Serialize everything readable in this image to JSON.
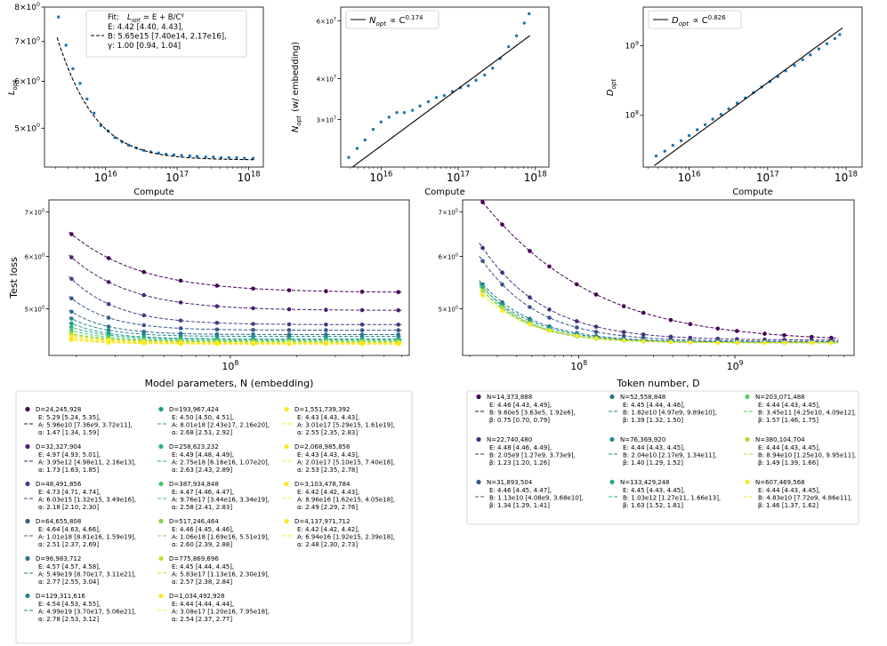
{
  "chart_data": [
    {
      "id": "p1",
      "type": "scatter",
      "title": "",
      "xlabel": "Compute",
      "ylabel": "L_opt",
      "xscale": "log",
      "yscale": "log",
      "xlim": [
        1400000000000000.0,
        1.6e+18
      ],
      "ylim": [
        4.3,
        8.0
      ],
      "xticks": [
        {
          "v": 1e+16,
          "b": "10",
          "e": "16"
        },
        {
          "v": 1e+17,
          "b": "10",
          "e": "17"
        },
        {
          "v": 1e+18,
          "b": "10",
          "e": "18"
        }
      ],
      "yticks": [
        {
          "v": 5,
          "b": "5×10",
          "e": "0"
        },
        {
          "v": 6,
          "b": "6×10",
          "e": "0"
        },
        {
          "v": 7,
          "b": "7×10",
          "e": "0"
        },
        {
          "v": 8,
          "b": "8×10",
          "e": "0"
        }
      ],
      "x": [
        2200000000000000.0,
        2800000000000000.0,
        3500000000000000.0,
        4400000000000000.0,
        5500000000000000.0,
        6900000000000000.0,
        8600000000000000.0,
        1.08e+16,
        1.35e+16,
        1.7e+16,
        2.1e+16,
        2.7e+16,
        3.4e+16,
        4.3e+16,
        5.5e+16,
        7e+16,
        9e+16,
        1.15e+17,
        1.5e+17,
        1.9e+17,
        2.5e+17,
        3.2e+17,
        4.1e+17,
        5.3e+17,
        6.8e+17,
        8.7e+17,
        1.15e+18
      ],
      "y": [
        7.7,
        6.9,
        6.3,
        5.95,
        5.6,
        5.3,
        5.05,
        4.95,
        4.82,
        4.74,
        4.68,
        4.63,
        4.59,
        4.56,
        4.54,
        4.52,
        4.51,
        4.5,
        4.49,
        4.48,
        4.47,
        4.47,
        4.46,
        4.46,
        4.46,
        4.45,
        4.45
      ],
      "fit": {
        "kind": "loss",
        "E": 4.42,
        "B": 5650000000000000.0,
        "gamma": 1.0,
        "xrange": [
          2100000000000000.0,
          1.2e+18
        ]
      },
      "legend": {
        "line1_prefix": "Fit: ",
        "line1_math": "L_opt = E + B/C^γ",
        "lines": [
          "E: 4.42 [4.40, 4.43],",
          "B:  5.65e15 [7.40e14, 2.17e16],",
          "γ: 1.00 [0.94, 1.04]"
        ]
      }
    },
    {
      "id": "p2",
      "type": "scatter",
      "xlabel": "Compute",
      "ylabel": "N_opt (w/ embedding)",
      "xscale": "log",
      "yscale": "log",
      "xlim": [
        3000000000000000.0,
        1.5e+18
      ],
      "ylim": [
        21500000.0,
        66000000.0
      ],
      "xticks": [
        {
          "v": 1e+16,
          "b": "10",
          "e": "16"
        },
        {
          "v": 1e+17,
          "b": "10",
          "e": "17"
        },
        {
          "v": 1e+18,
          "b": "10",
          "e": "18"
        }
      ],
      "yticks": [
        {
          "v": 30000000.0,
          "b": "3×10",
          "e": "7"
        },
        {
          "v": 40000000.0,
          "b": "4×10",
          "e": "7"
        },
        {
          "v": 60000000.0,
          "b": "6×10",
          "e": "7"
        }
      ],
      "x": [
        3800000000000000.0,
        4900000000000000.0,
        6200000000000000.0,
        7900000000000000.0,
        1e+16,
        1.27e+16,
        1.6e+16,
        2e+16,
        2.55e+16,
        3.2e+16,
        4.1e+16,
        5.2e+16,
        6.6e+16,
        8.4e+16,
        1.07e+17,
        1.35e+17,
        1.7e+17,
        2.2e+17,
        2.8e+17,
        3.5e+17,
        4.5e+17,
        5.7e+17,
        7.2e+17,
        8.3e+17
      ],
      "y": [
        23000000.0,
        24500000.0,
        26000000.0,
        28000000.0,
        29500000.0,
        30500000.0,
        31500000.0,
        31500000.0,
        32000000.0,
        33000000.0,
        34000000.0,
        35000000.0,
        35500000.0,
        36500000.0,
        37500000.0,
        38000000.0,
        39500000.0,
        41000000.0,
        43000000.0,
        46000000.0,
        50000000.0,
        54000000.0,
        59000000.0,
        63000000.0
      ],
      "fit": {
        "kind": "power",
        "a": 35500000.0,
        "x0": 7.6e+16,
        "exp": 0.174,
        "xrange": [
          3600000000000000.0,
          8.5e+17
        ]
      },
      "legend": {
        "math": "N_opt ∝ C^0.174"
      }
    },
    {
      "id": "p3",
      "type": "scatter",
      "xlabel": "Compute",
      "ylabel": "D_opt",
      "xscale": "log",
      "yscale": "log",
      "xlim": [
        2600000000000000.0,
        1.6e+18
      ],
      "ylim": [
        18000000.0,
        3600000000.0
      ],
      "xticks": [
        {
          "v": 1e+16,
          "b": "10",
          "e": "16"
        },
        {
          "v": 1e+17,
          "b": "10",
          "e": "17"
        },
        {
          "v": 1e+18,
          "b": "10",
          "e": "18"
        }
      ],
      "yticks": [
        {
          "v": 100000000.0,
          "b": "10",
          "e": "8"
        },
        {
          "v": 1000000000.0,
          "b": "10",
          "e": "9"
        }
      ],
      "x": [
        3800000000000000.0,
        4900000000000000.0,
        6200000000000000.0,
        7900000000000000.0,
        1e+16,
        1.27e+16,
        1.6e+16,
        2e+16,
        2.55e+16,
        3.2e+16,
        4.1e+16,
        5.2e+16,
        6.6e+16,
        8.4e+16,
        1.07e+17,
        1.35e+17,
        1.7e+17,
        2.2e+17,
        2.8e+17,
        3.5e+17,
        4.5e+17,
        5.7e+17,
        7.2e+17,
        8.3e+17
      ],
      "y": [
        26000000.0,
        30500000.0,
        37000000.0,
        43000000.0,
        51000000.0,
        62000000.0,
        73000000.0,
        88000000.0,
        103000000.0,
        124000000.0,
        150000000.0,
        178000000.0,
        212000000.0,
        255000000.0,
        305000000.0,
        360000000.0,
        435000000.0,
        520000000.0,
        630000000.0,
        740000000.0,
        900000000.0,
        1070000000.0,
        1270000000.0,
        1450000000.0
      ],
      "fit": {
        "kind": "power",
        "a": 255000000.0,
        "x0": 8.4e+16,
        "exp": 0.826,
        "xrange": [
          3600000000000000.0,
          9e+17
        ]
      },
      "legend": {
        "math": "D_opt ∝ C^0.826"
      }
    },
    {
      "id": "p4",
      "type": "scatter",
      "xlabel": "Model parameters, N (embedding)",
      "ylabel": "Test loss",
      "xscale": "log",
      "yscale": "log",
      "xlim": [
        15000000.0,
        650000000.0
      ],
      "ylim": [
        4.25,
        7.3
      ],
      "xticks": [
        {
          "v": 100000000.0,
          "b": "10",
          "e": "8"
        }
      ],
      "yticks": [
        {
          "v": 5,
          "b": "5×10",
          "e": "0"
        },
        {
          "v": 6,
          "b": "6×10",
          "e": "0"
        },
        {
          "v": 7,
          "b": "7×10",
          "e": "0"
        }
      ],
      "x": [
        19000000.0,
        28000000.0,
        40500000.0,
        59500000.0,
        87000000.0,
        127000000.0,
        185000000.0,
        272000000.0,
        397000000.0,
        580000000.0
      ],
      "series": [
        {
          "name": "D=24,245,928",
          "color": "#440154",
          "E": 5.29,
          "A": 59600000000.0,
          "alpha": 1.47,
          "fit_text": [
            "E: 5.29 [5.24, 5.35],",
            "A: 5.96e10 [7.36e9, 3.72e11],",
            "α: 1.47 [1.34, 1.59]"
          ]
        },
        {
          "name": "D=32,327,904",
          "color": "#482173",
          "E": 4.97,
          "A": 3950000000000.0,
          "alpha": 1.73,
          "fit_text": [
            "E: 4.97 [4.93, 5.01],",
            "A: 3.95e12 [4.98e11, 2.16e13],",
            "α: 1.73 [1.63, 1.85]"
          ]
        },
        {
          "name": "D=48,491,856",
          "color": "#433e85",
          "E": 4.73,
          "A": 6030000000000000.0,
          "alpha": 2.18,
          "fit_text": [
            "E: 4.73 [4.71, 4.74],",
            "A: 6.03e15 [1.32e15, 3.49e16],",
            "α: 2.18 [2.10, 2.30]"
          ]
        },
        {
          "name": "D=64,655,808",
          "color": "#38588c",
          "E": 4.64,
          "A": 1.01e+18,
          "alpha": 2.51,
          "fit_text": [
            "E: 4.64 [4.63, 4.66],",
            "A: 1.01e18 [8.81e16, 1.59e19],",
            "α: 2.51 [2.37, 2.69]"
          ]
        },
        {
          "name": "D=96,983,712",
          "color": "#2d708e",
          "E": 4.57,
          "A": 5.49e+19,
          "alpha": 2.77,
          "fit_text": [
            "E: 4.57 [4.57, 4.58],",
            "A: 5.49e19 [8.70e17, 3.11e21],",
            "α: 2.77 [2.55, 3.04]"
          ]
        },
        {
          "name": "D=129,311,616",
          "color": "#25858e",
          "E": 4.54,
          "A": 4.99e+19,
          "alpha": 2.78,
          "fit_text": [
            "E: 4.54 [4.53, 4.55],",
            "A: 4.99e19 [3.70e17, 5.06e21],",
            "α: 2.78 [2.53, 3.12]"
          ]
        },
        {
          "name": "D=193,967,424",
          "color": "#1e9b8a",
          "E": 4.5,
          "A": 8.01e+18,
          "alpha": 2.68,
          "fit_text": [
            "E: 4.50 [4.50, 4.51],",
            "A: 8.01e18 [2.43e17, 2.16e20],",
            "α: 2.68 [2.51, 2.92]"
          ]
        },
        {
          "name": "D=258,623,232",
          "color": "#2ab07f",
          "E": 4.49,
          "A": 2.75e+18,
          "alpha": 2.63,
          "fit_text": [
            "E: 4.49 [4.48, 4.49],",
            "A: 2.75e18 [6.16e16, 1.07e20],",
            "α: 2.63 [2.43, 2.89]"
          ]
        },
        {
          "name": "D=387,934,848",
          "color": "#52c569",
          "E": 4.47,
          "A": 9.76e+17,
          "alpha": 2.58,
          "fit_text": [
            "E: 4.47 [4.46, 4.47],",
            "A: 9.76e17 [3.44e16, 3.34e19],",
            "α: 2.58 [2.41, 2.83]"
          ]
        },
        {
          "name": "D=517,246,464",
          "color": "#86d549",
          "E": 4.46,
          "A": 1.06e+18,
          "alpha": 2.6,
          "fit_text": [
            "E: 4.46 [4.45, 4.46],",
            "A: 1.06e18 [1.69e16, 5.51e19],",
            "α: 2.60 [2.39, 2.88]"
          ]
        },
        {
          "name": "D=775,869,696",
          "color": "#c2df23",
          "E": 4.45,
          "A": 5.83e+17,
          "alpha": 2.57,
          "fit_text": [
            "E: 4.45 [4.44, 4.45],",
            "A: 5.83e17 [1.13e16, 2.30e19],",
            "α: 2.57 [2.38, 2.84]"
          ]
        },
        {
          "name": "D=1,034,492,928",
          "color": "#fde725",
          "E": 4.44,
          "A": 3.08e+17,
          "alpha": 2.54,
          "fit_text": [
            "E: 4.44 [4.44, 4.44],",
            "A: 3.08e17 [1.20e16, 7.95e18],",
            "α: 2.54 [2.37, 2.77]"
          ]
        },
        {
          "name": "D=1,551,739,392",
          "color": "#fde725",
          "E": 4.43,
          "A": 3.01e+17,
          "alpha": 2.55,
          "fit_text": [
            "E: 4.43 [4.43, 4.43],",
            "A: 3.01e17 [5.29e15, 1.61e19],",
            "α: 2.55 [2.35, 2.83]"
          ]
        },
        {
          "name": "D=2,068,985,856",
          "color": "#fde725",
          "E": 4.43,
          "A": 2.01e+17,
          "alpha": 2.53,
          "fit_text": [
            "E: 4.43 [4.43, 4.43],",
            "A: 2.01e17 [5.10e15, 7.40e18],",
            "α: 2.53 [2.35, 2.78]"
          ]
        },
        {
          "name": "D=3,103,478,784",
          "color": "#fde725",
          "E": 4.42,
          "A": 8.96e+16,
          "alpha": 2.49,
          "fit_text": [
            "E: 4.42 [4.42, 4.43],",
            "A: 8.96e16 [1.62e15, 4.05e18],",
            "α: 2.49 [2.29, 2.76]"
          ]
        },
        {
          "name": "D=4,137,971,712",
          "color": "#fde725",
          "E": 4.42,
          "A": 6.94e+16,
          "alpha": 2.48,
          "fit_text": [
            "E: 4.42 [4.42, 4.42],",
            "A: 6.94e16 [1.92e15, 2.39e18],",
            "α: 2.48 [2.30, 2.73]"
          ]
        }
      ]
    },
    {
      "id": "p5",
      "type": "scatter",
      "xlabel": "Token number, D",
      "ylabel": "",
      "xscale": "log",
      "yscale": "log",
      "xlim": [
        18000000.0,
        5800000000.0
      ],
      "ylim": [
        4.25,
        7.3
      ],
      "xticks": [
        {
          "v": 100000000.0,
          "b": "10",
          "e": "8"
        },
        {
          "v": 1000000000.0,
          "b": "10",
          "e": "9"
        }
      ],
      "yticks": [
        {
          "v": 5,
          "b": "5×10",
          "e": "0"
        },
        {
          "v": 6,
          "b": "6×10",
          "e": "0"
        },
        {
          "v": 7,
          "b": "7×10",
          "e": "0"
        }
      ],
      "x": [
        24200000.0,
        32300000.0,
        48500000.0,
        64700000.0,
        97000000.0,
        129000000.0,
        194000000.0,
        259000000.0,
        388000000.0,
        517000000.0,
        776000000.0,
        1030000000.0,
        1550000000.0,
        2070000000.0,
        3100000000.0,
        4140000000.0
      ],
      "series": [
        {
          "name": "N=14,373,888",
          "color": "#440154",
          "E": 4.46,
          "B": 960000.0,
          "beta": 0.75,
          "fit_text": [
            "E: 4.46 [4.43, 4.49],",
            "B:  9.60e5 [3.63e5, 1.92e6],",
            "β: 0.75 [0.70, 0.79]"
          ]
        },
        {
          "name": "N=22,740,480",
          "color": "#472d7b",
          "E": 4.48,
          "B": 2050000000.0,
          "beta": 1.23,
          "fit_text": [
            "E: 4.48 [4.46, 4.49],",
            "B:  2.05e9 [1.27e9, 3.73e9],",
            "β: 1.23 [1.20, 1.26]"
          ]
        },
        {
          "name": "N=31,893,504",
          "color": "#3b528b",
          "E": 4.46,
          "B": 11300000000.0,
          "beta": 1.34,
          "fit_text": [
            "E: 4.46 [4.45, 4.47],",
            "B:  1.13e10 [4.08e9, 3.68e10],",
            "β: 1.34 [1.29, 1.41]"
          ]
        },
        {
          "name": "N=52,558,848",
          "color": "#2c728e",
          "E": 4.45,
          "B": 18200000000.0,
          "beta": 1.39,
          "fit_text": [
            "E: 4.45 [4.44, 4.46],",
            "B:  1.82e10 [4.97e9, 9.89e10],",
            "β: 1.39 [1.32, 1.50]"
          ]
        },
        {
          "name": "N=76,369,920",
          "color": "#21918c",
          "E": 4.44,
          "B": 20400000000.0,
          "beta": 1.4,
          "fit_text": [
            "E: 4.44 [4.43, 4.45],",
            "B:  2.04e10 [2.17e9, 1.34e11],",
            "β: 1.40 [1.29, 1.52]"
          ]
        },
        {
          "name": "N=133,429,248",
          "color": "#28ae80",
          "E": 4.45,
          "B": 1030000000000.0,
          "beta": 1.63,
          "fit_text": [
            "E: 4.45 [4.43, 4.45],",
            "B:  1.03e12 [1.27e11, 1.66e13],",
            "β: 1.63 [1.52, 1.81]"
          ]
        },
        {
          "name": "N=203,071,488",
          "color": "#5ec962",
          "E": 4.44,
          "B": 345000000000.0,
          "beta": 1.57,
          "fit_text": [
            "E: 4.44 [4.43, 4.45],",
            "B:  3.45e11 [4.25e10, 4.09e12],",
            "β: 1.57 [1.46, 1.75]"
          ]
        },
        {
          "name": "N=380,104,704",
          "color": "#addc30",
          "E": 4.44,
          "B": 89400000000.0,
          "beta": 1.49,
          "fit_text": [
            "E: 4.44 [4.43, 4.45],",
            "B:  8.94e10 [1.25e10, 9.95e11],",
            "β: 1.49 [1.39, 1.66]"
          ]
        },
        {
          "name": "N=607,469,568",
          "color": "#fde725",
          "E": 4.44,
          "B": 48300000000.0,
          "beta": 1.46,
          "fit_text": [
            "E: 4.44 [4.43, 4.45],",
            "B:  4.83e10 [7.72e9, 4.86e11],",
            "β: 1.46 [1.37, 1.62]"
          ]
        }
      ]
    }
  ]
}
